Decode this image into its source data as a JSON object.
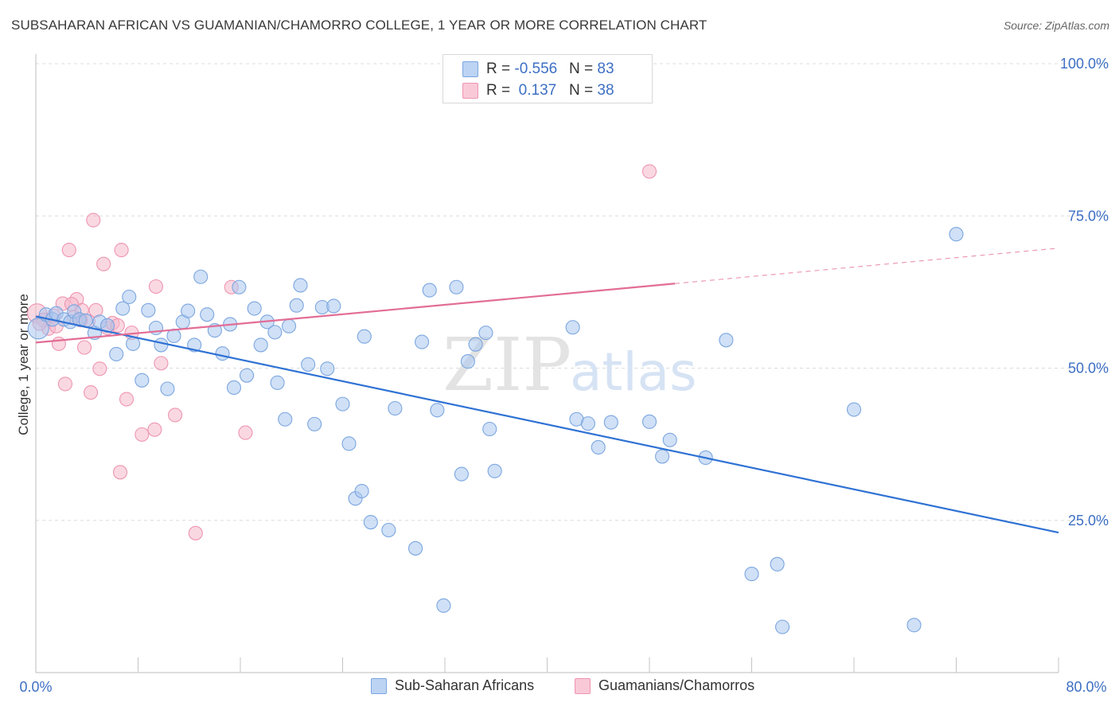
{
  "title": "SUBSAHARAN AFRICAN VS GUAMANIAN/CHAMORRO COLLEGE, 1 YEAR OR MORE CORRELATION CHART",
  "source": "Source: ZipAtlas.com",
  "watermark": {
    "zip": "ZIP",
    "atlas": "atlas"
  },
  "colors": {
    "blue_fill": "#a9c7ef",
    "blue_stroke": "#7ba6e0",
    "blue_line": "#2f72d4",
    "pink_fill": "#f6b8cb",
    "pink_stroke": "#ee95b1",
    "pink_line": "#e26d96",
    "tick_text": "#3d6fc4",
    "grid": "#dcdcdc"
  },
  "legend": {
    "rows": [
      {
        "r_label": "R = ",
        "r_value": "-0.556",
        "n_label": "N = ",
        "n_value": "83"
      },
      {
        "r_label": "R = ",
        "r_value": " 0.137",
        "n_label": "N = ",
        "n_value": "38"
      }
    ]
  },
  "chart_data": {
    "type": "scatter",
    "title": "SUBSAHARAN AFRICAN VS GUAMANIAN/CHAMORRO COLLEGE, 1 YEAR OR MORE CORRELATION CHART",
    "xlabel": "",
    "ylabel": "College, 1 year or more",
    "xlim": [
      0,
      80
    ],
    "ylim": [
      0,
      100
    ],
    "x_tick_labels": [
      "0.0%",
      "80.0%"
    ],
    "y_ticks": [
      25,
      50,
      75,
      100
    ],
    "y_tick_labels": [
      "25.0%",
      "50.0%",
      "75.0%",
      "100.0%"
    ],
    "grid": true,
    "series": [
      {
        "name": "Sub-Saharan Africans",
        "color": "#a9c7ef",
        "r": -0.556,
        "n": 83,
        "trend": {
          "x0": 0,
          "y0": 58.5,
          "x1": 80,
          "y1": 23.0,
          "solid_until": 80
        },
        "points": [
          [
            0.2,
            56.5
          ],
          [
            0.8,
            58.8
          ],
          [
            1.3,
            58.0
          ],
          [
            1.6,
            59.0
          ],
          [
            2.2,
            58.0
          ],
          [
            2.7,
            57.6
          ],
          [
            3.0,
            59.3
          ],
          [
            3.4,
            58.0
          ],
          [
            3.9,
            57.8
          ],
          [
            4.6,
            55.8
          ],
          [
            5.0,
            57.6
          ],
          [
            5.6,
            57.0
          ],
          [
            6.3,
            52.3
          ],
          [
            6.8,
            59.8
          ],
          [
            7.3,
            61.7
          ],
          [
            7.6,
            54.0
          ],
          [
            8.3,
            48.0
          ],
          [
            8.8,
            59.5
          ],
          [
            9.4,
            56.6
          ],
          [
            9.8,
            53.8
          ],
          [
            10.3,
            46.6
          ],
          [
            10.8,
            55.3
          ],
          [
            11.5,
            57.6
          ],
          [
            11.9,
            59.4
          ],
          [
            12.4,
            53.8
          ],
          [
            12.9,
            65.0
          ],
          [
            13.4,
            58.8
          ],
          [
            14.0,
            56.2
          ],
          [
            14.6,
            52.4
          ],
          [
            15.2,
            57.2
          ],
          [
            15.5,
            46.8
          ],
          [
            15.9,
            63.3
          ],
          [
            16.5,
            48.8
          ],
          [
            17.1,
            59.8
          ],
          [
            17.6,
            53.8
          ],
          [
            18.1,
            57.6
          ],
          [
            18.7,
            55.9
          ],
          [
            18.9,
            47.6
          ],
          [
            19.5,
            41.6
          ],
          [
            19.8,
            56.9
          ],
          [
            20.4,
            60.3
          ],
          [
            20.7,
            63.6
          ],
          [
            21.3,
            50.6
          ],
          [
            21.8,
            40.8
          ],
          [
            22.4,
            60.0
          ],
          [
            22.8,
            49.9
          ],
          [
            23.3,
            60.2
          ],
          [
            24.0,
            44.1
          ],
          [
            24.5,
            37.6
          ],
          [
            25.0,
            28.6
          ],
          [
            25.5,
            29.8
          ],
          [
            25.7,
            55.2
          ],
          [
            26.2,
            24.7
          ],
          [
            27.6,
            23.4
          ],
          [
            28.1,
            43.4
          ],
          [
            29.7,
            20.4
          ],
          [
            30.2,
            54.3
          ],
          [
            30.8,
            62.8
          ],
          [
            31.4,
            43.1
          ],
          [
            31.9,
            11.0
          ],
          [
            32.9,
            63.3
          ],
          [
            33.3,
            32.6
          ],
          [
            33.8,
            51.1
          ],
          [
            34.4,
            53.9
          ],
          [
            35.2,
            55.8
          ],
          [
            35.5,
            40.0
          ],
          [
            35.9,
            33.1
          ],
          [
            42.0,
            56.7
          ],
          [
            42.3,
            41.6
          ],
          [
            43.2,
            40.9
          ],
          [
            44.0,
            37.0
          ],
          [
            45.0,
            41.1
          ],
          [
            48.0,
            41.2
          ],
          [
            49.0,
            35.5
          ],
          [
            49.6,
            38.2
          ],
          [
            52.4,
            35.3
          ],
          [
            54.0,
            54.6
          ],
          [
            56.0,
            16.2
          ],
          [
            58.0,
            17.8
          ],
          [
            58.4,
            7.5
          ],
          [
            64.0,
            43.2
          ],
          [
            68.7,
            7.8
          ],
          [
            72.0,
            72.0
          ]
        ]
      },
      {
        "name": "Guamanians/Chamorros",
        "color": "#f6b8cb",
        "r": 0.137,
        "n": 38,
        "trend": {
          "x0": 0,
          "y0": 54.2,
          "x1": 80,
          "y1": 69.7,
          "solid_until": 50
        },
        "points": [
          [
            0.1,
            59.0
          ],
          [
            0.6,
            57.9
          ],
          [
            1.0,
            56.5
          ],
          [
            1.4,
            58.6
          ],
          [
            1.8,
            54.0
          ],
          [
            2.1,
            60.6
          ],
          [
            2.3,
            47.4
          ],
          [
            2.6,
            69.4
          ],
          [
            3.0,
            58.4
          ],
          [
            3.2,
            61.3
          ],
          [
            3.6,
            59.5
          ],
          [
            3.8,
            53.4
          ],
          [
            4.1,
            57.7
          ],
          [
            4.3,
            46.0
          ],
          [
            4.7,
            59.5
          ],
          [
            5.0,
            49.9
          ],
          [
            5.3,
            67.1
          ],
          [
            5.6,
            56.6
          ],
          [
            6.0,
            57.4
          ],
          [
            6.4,
            57.0
          ],
          [
            6.7,
            69.4
          ],
          [
            7.1,
            44.9
          ],
          [
            7.5,
            55.8
          ],
          [
            8.3,
            39.1
          ],
          [
            9.4,
            63.4
          ],
          [
            9.8,
            50.8
          ],
          [
            9.3,
            39.9
          ],
          [
            10.9,
            42.3
          ],
          [
            4.5,
            74.3
          ],
          [
            6.6,
            32.9
          ],
          [
            12.5,
            22.9
          ],
          [
            15.3,
            63.3
          ],
          [
            16.4,
            39.4
          ],
          [
            48.0,
            82.3
          ],
          [
            2.8,
            60.5
          ],
          [
            0.3,
            57.3
          ],
          [
            1.6,
            56.9
          ],
          [
            3.5,
            57.9
          ]
        ]
      }
    ]
  }
}
